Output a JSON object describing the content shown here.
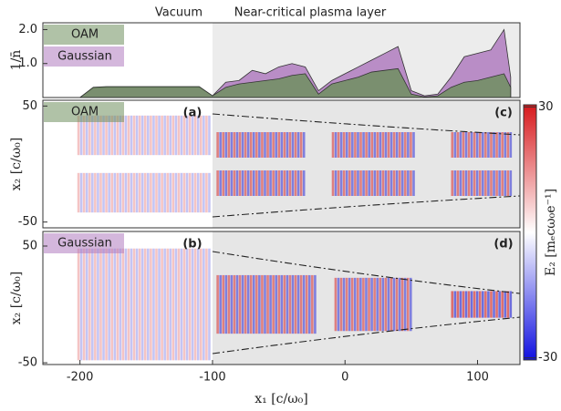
{
  "chart_data": [
    {
      "type": "area",
      "ylabel": "1/n̄",
      "annotations": [
        "Vacuum",
        "Near-critical plasma layer"
      ],
      "x": [
        -200,
        -190,
        -180,
        -170,
        -160,
        -150,
        -140,
        -130,
        -120,
        -110,
        -100,
        -90,
        -80,
        -70,
        -60,
        -50,
        -40,
        -30,
        -20,
        -10,
        0,
        10,
        20,
        30,
        40,
        50,
        60,
        70,
        80,
        90,
        100,
        110,
        120,
        125
      ],
      "series": [
        {
          "name": "OAM",
          "color": "#6f8f5f",
          "values": [
            0,
            0.3,
            0.32,
            0.32,
            0.32,
            0.32,
            0.32,
            0.32,
            0.32,
            0.32,
            0.05,
            0.3,
            0.4,
            0.45,
            0.5,
            0.55,
            0.65,
            0.7,
            0.1,
            0.4,
            0.5,
            0.6,
            0.75,
            0.8,
            0.85,
            0.1,
            0.02,
            0.05,
            0.3,
            0.45,
            0.5,
            0.6,
            0.7,
            0.3
          ]
        },
        {
          "name": "Gaussian",
          "color": "#b07cc0",
          "values": [
            0,
            0.28,
            0.3,
            0.3,
            0.3,
            0.3,
            0.3,
            0.3,
            0.3,
            0.3,
            0.05,
            0.45,
            0.5,
            0.8,
            0.7,
            0.9,
            1.0,
            0.9,
            0.2,
            0.5,
            0.7,
            0.9,
            1.1,
            1.3,
            1.5,
            0.2,
            0.05,
            0.1,
            0.6,
            1.2,
            1.3,
            1.4,
            2.0,
            0.6
          ]
        }
      ],
      "xlim": [
        -228,
        132
      ],
      "ylim": [
        0,
        2.2
      ],
      "yticks": [
        {
          "value": 1,
          "label": "1.0"
        },
        {
          "value": 2,
          "label": "2.0"
        }
      ]
    },
    {
      "type": "field",
      "legend": "OAM",
      "panel_labels": [
        "(a)",
        "(c)"
      ],
      "ylabel": "x₂ [c/ω₀]",
      "xlim": [
        -228,
        132
      ],
      "ylim": [
        -55,
        55
      ],
      "yticks": [
        50,
        -50
      ]
    },
    {
      "type": "field",
      "legend": "Gaussian",
      "panel_labels": [
        "(b)",
        "(d)"
      ],
      "ylabel": "x₂ [c/ω₀]",
      "xlabel": "x₁ [c/ω₀]",
      "xlim": [
        -228,
        132
      ],
      "ylim": [
        -51.5,
        62.5
      ],
      "yticks": [
        50,
        -50
      ],
      "xticks": [
        -200,
        -100,
        0,
        100
      ]
    },
    {
      "type": "colorbar",
      "label": "E₂ [mₑcω₀e⁻¹]",
      "lim": [
        -30.5,
        30.5
      ],
      "ticks": [
        30,
        -30
      ]
    }
  ]
}
